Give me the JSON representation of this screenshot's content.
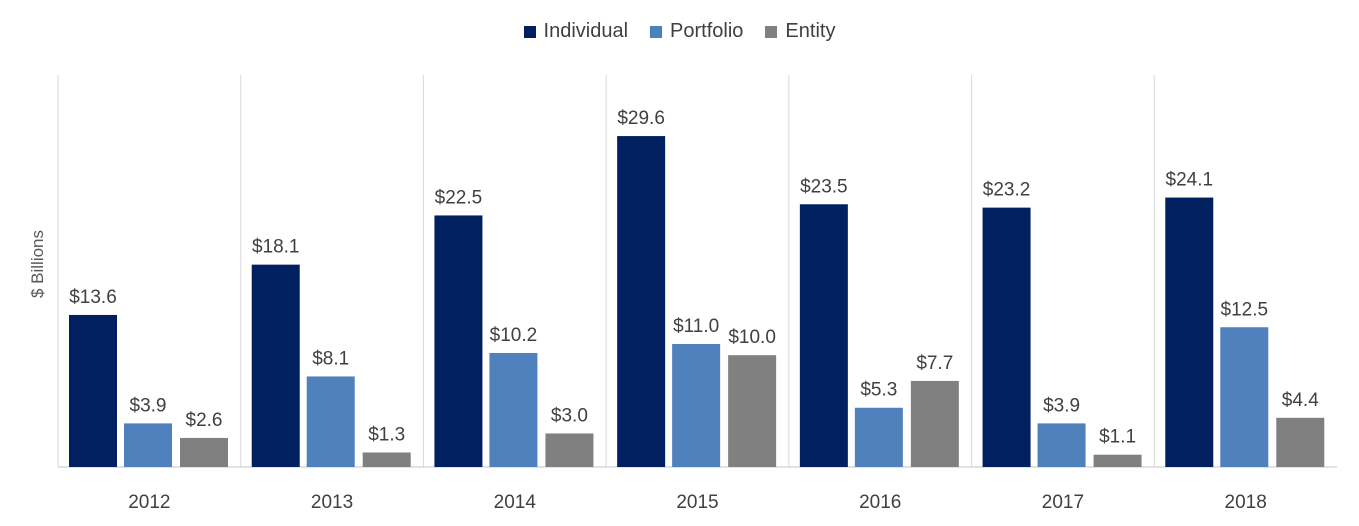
{
  "chart_data": {
    "type": "bar",
    "categories": [
      "2012",
      "2013",
      "2014",
      "2015",
      "2016",
      "2017",
      "2018"
    ],
    "series": [
      {
        "name": "Individual",
        "color": "#002060",
        "values": [
          13.6,
          18.1,
          22.5,
          29.6,
          23.5,
          23.2,
          24.1
        ]
      },
      {
        "name": "Portfolio",
        "color": "#4f81bd",
        "values": [
          3.9,
          8.1,
          10.2,
          11.0,
          5.3,
          3.9,
          12.5
        ]
      },
      {
        "name": "Entity",
        "color": "#808080",
        "values": [
          2.6,
          1.3,
          3.0,
          10.0,
          7.7,
          1.1,
          4.4
        ]
      }
    ],
    "data_labels": [
      [
        "$13.6",
        "$18.1",
        "$22.5",
        "$29.6",
        "$23.5",
        "$23.2",
        "$24.1"
      ],
      [
        "$3.9",
        "$8.1",
        "$10.2",
        "$11.0",
        "$5.3",
        "$3.9",
        "$12.5"
      ],
      [
        "$2.6",
        "$1.3",
        "$3.0",
        "$10.0",
        "$7.7",
        "$1.1",
        "$4.4"
      ]
    ],
    "ylabel": "$ Billions",
    "ylim": [
      0,
      30
    ],
    "legend_position": "top-center",
    "grid": "vertical separators between categories"
  }
}
